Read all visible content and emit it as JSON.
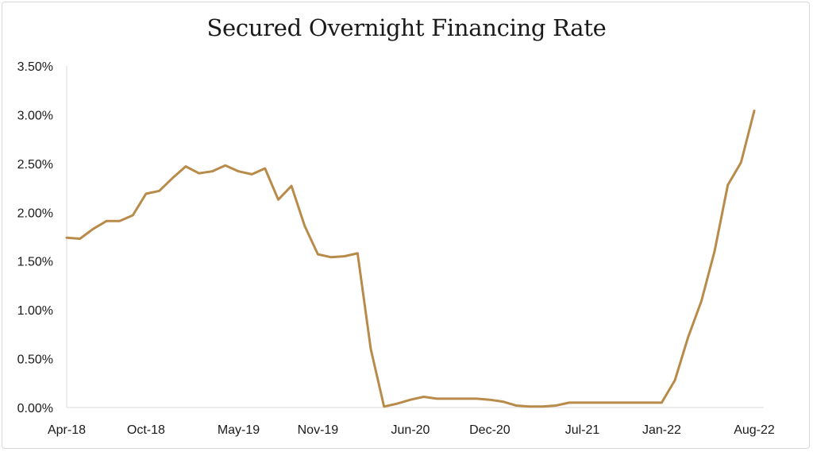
{
  "chart_data": {
    "type": "line",
    "title": "Secured Overnight Financing Rate",
    "xlabel": "",
    "ylabel": "",
    "ylim": [
      0,
      3.5
    ],
    "y_ticks": [
      "0.00%",
      "0.50%",
      "1.00%",
      "1.50%",
      "2.00%",
      "2.50%",
      "3.00%",
      "3.50%"
    ],
    "x_ticks": [
      "Apr-18",
      "Oct-18",
      "May-19",
      "Nov-19",
      "Jun-20",
      "Dec-20",
      "Jul-21",
      "Jan-22",
      "Aug-22"
    ],
    "x_tick_index": [
      0,
      6,
      13,
      19,
      26,
      32,
      39,
      45,
      52
    ],
    "grid": false,
    "legend": "none",
    "line_color": "#b98b4a",
    "series": [
      {
        "values": [
          1.74,
          1.73,
          1.83,
          1.91,
          1.91,
          1.97,
          2.19,
          2.22,
          2.35,
          2.47,
          2.4,
          2.42,
          2.48,
          2.42,
          2.39,
          2.45,
          2.13,
          2.27,
          1.86,
          1.57,
          1.54,
          1.55,
          1.58,
          0.6,
          0.01,
          0.04,
          0.08,
          0.11,
          0.09,
          0.09,
          0.09,
          0.09,
          0.08,
          0.06,
          0.02,
          0.01,
          0.01,
          0.02,
          0.05,
          0.05,
          0.05,
          0.05,
          0.05,
          0.05,
          0.05,
          0.05,
          0.28,
          0.72,
          1.09,
          1.6,
          2.28,
          2.51,
          3.04
        ]
      }
    ]
  }
}
